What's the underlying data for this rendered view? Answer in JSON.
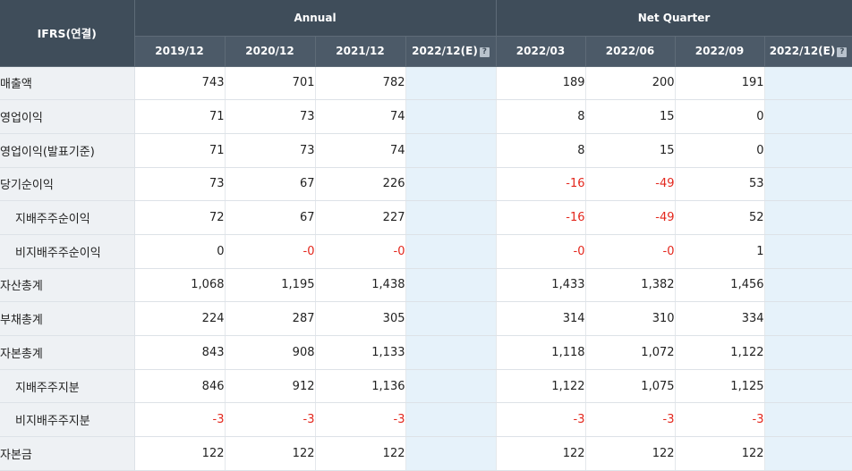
{
  "header": {
    "corner_label": "IFRS(연결)",
    "groups": [
      {
        "label": "Annual",
        "span": 4
      },
      {
        "label": "Net Quarter",
        "span": 4
      }
    ],
    "periods": [
      {
        "label": "2019/12",
        "estimate": false,
        "info_icon": false
      },
      {
        "label": "2020/12",
        "estimate": false,
        "info_icon": false
      },
      {
        "label": "2021/12",
        "estimate": false,
        "info_icon": false
      },
      {
        "label": "2022/12(E)",
        "estimate": true,
        "info_icon": true
      },
      {
        "label": "2022/03",
        "estimate": false,
        "info_icon": false
      },
      {
        "label": "2022/06",
        "estimate": false,
        "info_icon": false
      },
      {
        "label": "2022/09",
        "estimate": false,
        "info_icon": false
      },
      {
        "label": "2022/12(E)",
        "estimate": true,
        "info_icon": true
      }
    ],
    "info_icon_glyph": "?"
  },
  "rows": [
    {
      "label": "매출액",
      "indent": false,
      "values": [
        "743",
        "701",
        "782",
        "",
        "189",
        "200",
        "191",
        ""
      ]
    },
    {
      "label": "영업이익",
      "indent": false,
      "values": [
        "71",
        "73",
        "74",
        "",
        "8",
        "15",
        "0",
        ""
      ]
    },
    {
      "label": "영업이익(발표기준)",
      "indent": false,
      "values": [
        "71",
        "73",
        "74",
        "",
        "8",
        "15",
        "0",
        ""
      ]
    },
    {
      "label": "당기순이익",
      "indent": false,
      "values": [
        "73",
        "67",
        "226",
        "",
        "-16",
        "-49",
        "53",
        ""
      ]
    },
    {
      "label": "지배주주순이익",
      "indent": true,
      "values": [
        "72",
        "67",
        "227",
        "",
        "-16",
        "-49",
        "52",
        ""
      ]
    },
    {
      "label": "비지배주주순이익",
      "indent": true,
      "values": [
        "0",
        "-0",
        "-0",
        "",
        "-0",
        "-0",
        "1",
        ""
      ]
    },
    {
      "label": "자산총계",
      "indent": false,
      "values": [
        "1,068",
        "1,195",
        "1,438",
        "",
        "1,433",
        "1,382",
        "1,456",
        ""
      ]
    },
    {
      "label": "부채총계",
      "indent": false,
      "values": [
        "224",
        "287",
        "305",
        "",
        "314",
        "310",
        "334",
        ""
      ]
    },
    {
      "label": "자본총계",
      "indent": false,
      "values": [
        "843",
        "908",
        "1,133",
        "",
        "1,118",
        "1,072",
        "1,122",
        ""
      ]
    },
    {
      "label": "지배주주지분",
      "indent": true,
      "values": [
        "846",
        "912",
        "1,136",
        "",
        "1,122",
        "1,075",
        "1,125",
        ""
      ]
    },
    {
      "label": "비지배주주지분",
      "indent": true,
      "values": [
        "-3",
        "-3",
        "-3",
        "",
        "-3",
        "-3",
        "-3",
        ""
      ]
    },
    {
      "label": "자본금",
      "indent": false,
      "values": [
        "122",
        "122",
        "122",
        "",
        "122",
        "122",
        "122",
        ""
      ]
    }
  ],
  "colors": {
    "header_bg": "#3f4d5a",
    "label_bg": "#eef1f4",
    "estimate_bg": "#e6f2fa",
    "negative_text": "#e3271d"
  }
}
